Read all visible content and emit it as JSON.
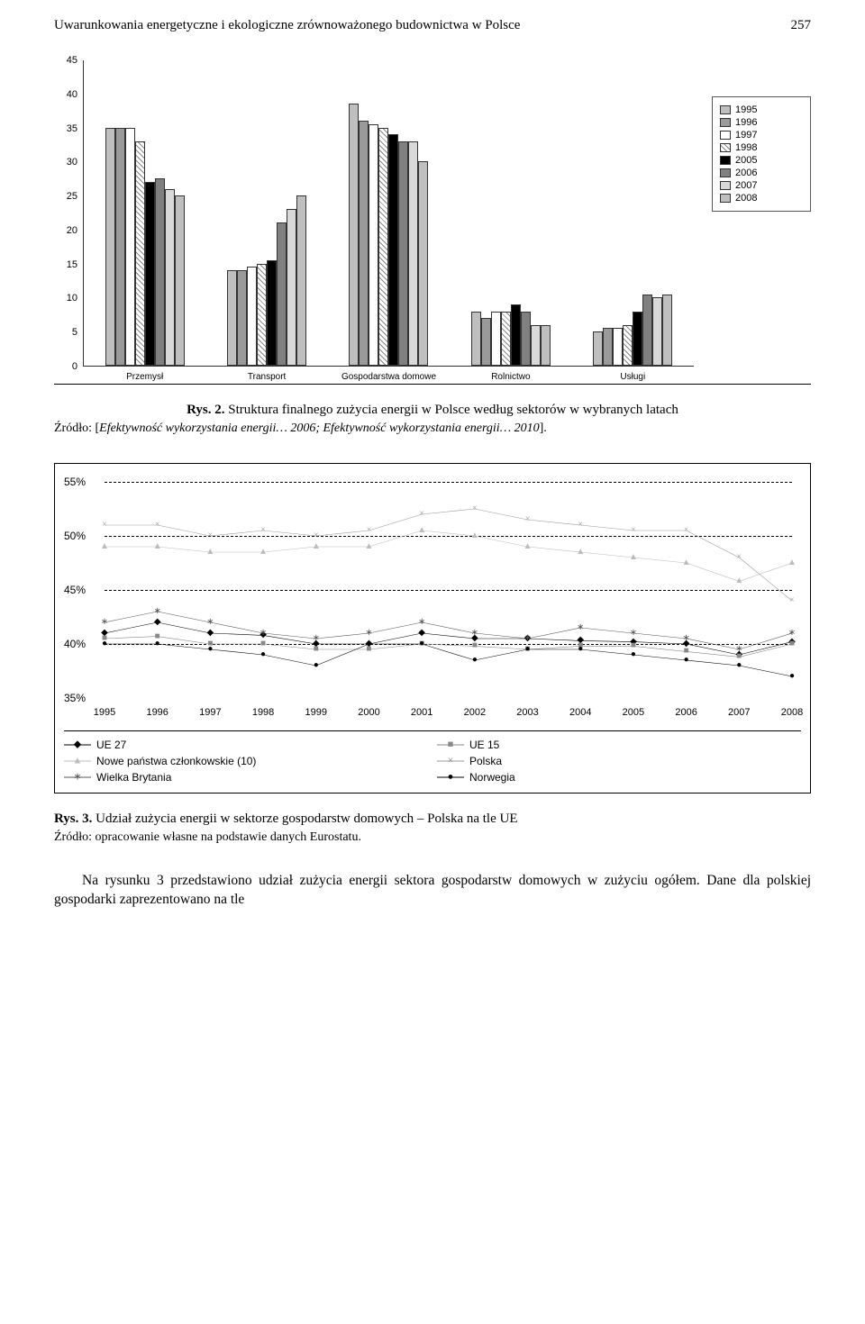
{
  "header": {
    "running_title": "Uwarunkowania energetyczne i ekologiczne zrównoważonego budownictwa w Polsce",
    "page_number": "257"
  },
  "bar_chart": {
    "type": "bar",
    "y_max": 45,
    "y_ticks": [
      0,
      5,
      10,
      15,
      20,
      25,
      30,
      35,
      40,
      45
    ],
    "categories": [
      "Przemysł",
      "Transport",
      "Gospodarstwa domowe",
      "Rolnictwo",
      "Usługi"
    ],
    "years": [
      "1995",
      "1996",
      "1997",
      "1998",
      "2005",
      "2006",
      "2007",
      "2008"
    ],
    "fills": [
      "#bfbfbf",
      "#9a9a9a",
      "#ffffff",
      "hatch",
      "#000000",
      "#808080",
      "#d9d9d9",
      "#bfbfbf"
    ],
    "series": [
      [
        35.0,
        35.0,
        35.0,
        33.0,
        27.0,
        27.5,
        26.0,
        25.0
      ],
      [
        14.0,
        14.0,
        14.5,
        15.0,
        15.5,
        21.0,
        23.0,
        25.0
      ],
      [
        38.5,
        36.0,
        35.5,
        35.0,
        34.0,
        33.0,
        33.0,
        30.0
      ],
      [
        8.0,
        7.0,
        8.0,
        8.0,
        9.0,
        8.0,
        6.0,
        6.0
      ],
      [
        5.0,
        5.5,
        5.5,
        6.0,
        8.0,
        10.5,
        10.0,
        10.5
      ]
    ],
    "group_width_pct": 16,
    "group_positions_pct": [
      2,
      22,
      42,
      62,
      82
    ]
  },
  "fig2": {
    "label": "Rys. 2.",
    "caption": "Struktura finalnego zużycia energii w Polsce według sektorów w wybranych latach",
    "source_prefix": "Źródło: [",
    "source_body": "Efektywność wykorzystania energii… 2006; Efektywność wykorzystania energii… 2010",
    "source_suffix": "]."
  },
  "line_chart": {
    "type": "line",
    "y_ticks": [
      "35%",
      "40%",
      "45%",
      "50%",
      "55%"
    ],
    "y_positions_pct": [
      100,
      75,
      50,
      25,
      0
    ],
    "x_labels": [
      "1995",
      "1996",
      "1997",
      "1998",
      "1999",
      "2000",
      "2001",
      "2002",
      "2003",
      "2004",
      "2005",
      "2006",
      "2007",
      "2008"
    ],
    "series": [
      {
        "name": "UE 27",
        "marker": "◆",
        "color": "#000000",
        "values": [
          41.0,
          42.0,
          41.0,
          40.8,
          40.0,
          40.0,
          41.0,
          40.5,
          40.5,
          40.3,
          40.2,
          40.0,
          39.0,
          40.2
        ]
      },
      {
        "name": "UE 15",
        "marker": "■",
        "color": "#888888",
        "values": [
          40.5,
          40.7,
          40.0,
          40.0,
          39.5,
          39.5,
          40.0,
          39.8,
          39.5,
          39.8,
          39.8,
          39.3,
          38.8,
          40.0
        ]
      },
      {
        "name": "Nowe państwa członkowskie (10)",
        "marker": "▲",
        "color": "#bbbbbb",
        "values": [
          49.0,
          49.0,
          48.5,
          48.5,
          49.0,
          49.0,
          50.5,
          50.0,
          49.0,
          48.5,
          48.0,
          47.5,
          45.8,
          47.5
        ]
      },
      {
        "name": "Polska",
        "marker": "×",
        "color": "#999999",
        "values": [
          51.0,
          51.0,
          50.0,
          50.5,
          50.0,
          50.5,
          52.0,
          52.5,
          51.5,
          51.0,
          50.5,
          50.5,
          48.0,
          44.0
        ]
      },
      {
        "name": "Wielka Brytania",
        "marker": "∗",
        "color": "#555555",
        "values": [
          42.0,
          43.0,
          42.0,
          41.0,
          40.5,
          41.0,
          42.0,
          41.0,
          40.5,
          41.5,
          41.0,
          40.5,
          39.5,
          41.0
        ]
      },
      {
        "name": "Norwegia",
        "marker": "●",
        "color": "#000000",
        "values": [
          40.0,
          40.0,
          39.5,
          39.0,
          38.0,
          40.0,
          40.0,
          38.5,
          39.5,
          39.5,
          39.0,
          38.5,
          38.0,
          37.0
        ]
      }
    ],
    "y_domain": [
      35,
      55
    ]
  },
  "fig3": {
    "label": "Rys. 3.",
    "caption": "Udział zużycia energii w sektorze gospodarstw domowych – Polska na tle UE",
    "source": "Źródło: opracowanie własne na podstawie danych Eurostatu."
  },
  "paragraph": "Na rysunku 3 przedstawiono udział zużycia energii sektora gospodarstw domowych w zużyciu ogółem. Dane dla polskiej gospodarki zaprezentowano na tle"
}
